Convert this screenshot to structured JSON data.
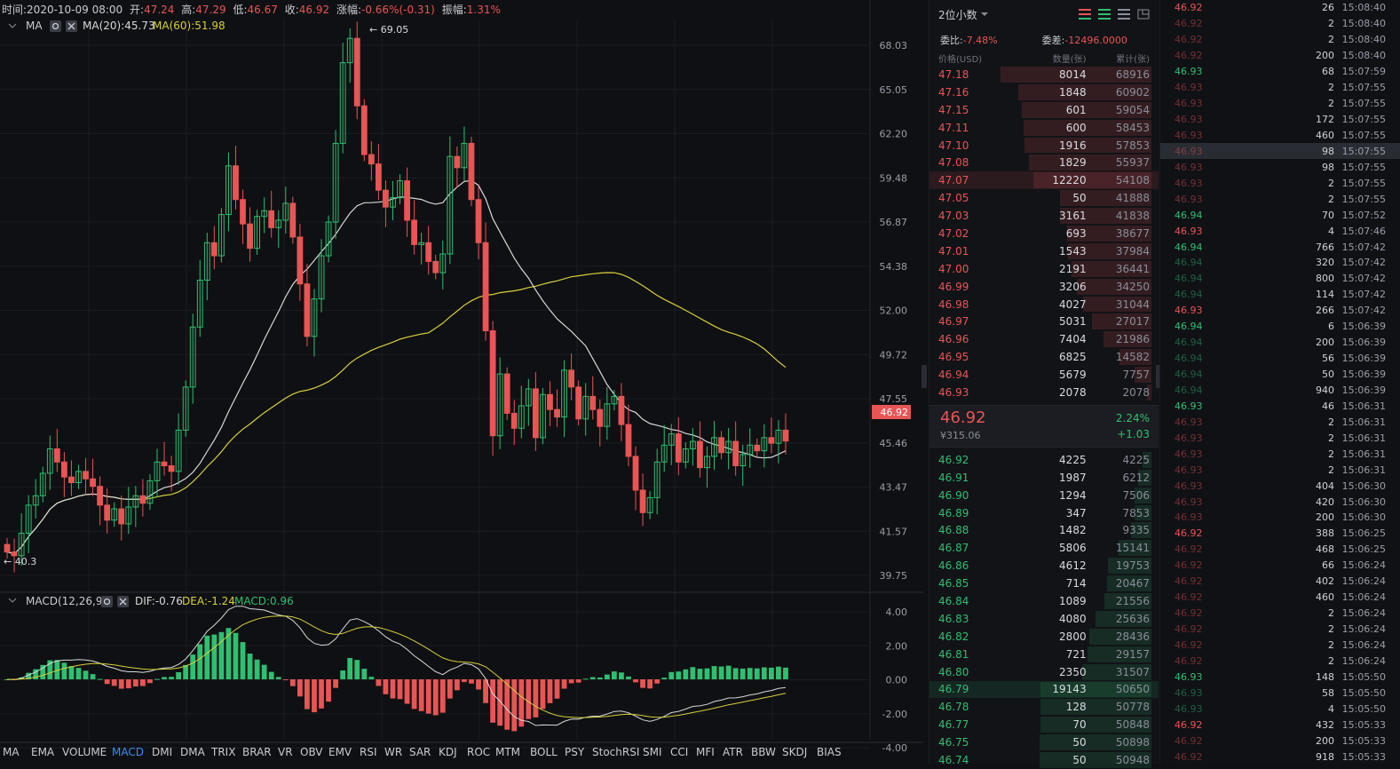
{
  "header": {
    "time_label": "时间:",
    "time": "2020-10-09 08:00",
    "open_label": "开:",
    "open": "47.24",
    "high_label": "高:",
    "high": "47.29",
    "low_label": "低:",
    "low": "46.67",
    "close_label": "收:",
    "close": "46.92",
    "change_label": "涨幅:",
    "change": "-0.66%(-0.31)",
    "amp_label": "振幅:",
    "amp": "1.31%"
  },
  "ma_legend": {
    "name": "MA",
    "ma20": "MA(20):45.73",
    "ma60": "MA(60):51.98"
  },
  "macd_legend": {
    "name": "MACD(12,26,9)",
    "dif": "DIF:-0.76",
    "dea": "DEA:-1.24",
    "macd": "MACD:0.96"
  },
  "price_axis": [
    "68.03",
    "65.05",
    "62.20",
    "59.48",
    "56.87",
    "54.38",
    "52.00",
    "49.72",
    "47.55",
    "45.46",
    "43.47",
    "41.57",
    "39.75"
  ],
  "current_price_tag": "46.92",
  "high_marker": "← 69.05",
  "low_marker": "← 40.3",
  "macd_axis": [
    "4.00",
    "2.00",
    "0.00",
    "-2.00",
    "-4.00"
  ],
  "indicator_tabs": [
    "MA",
    "EMA",
    "VOLUME",
    "MACD",
    "DMI",
    "DMA",
    "TRIX",
    "BRAR",
    "VR",
    "OBV",
    "EMV",
    "RSI",
    "WR",
    "SAR",
    "KDJ",
    "ROC",
    "MTM",
    "BOLL",
    "PSY",
    "StochRSI",
    "SMI",
    "CCI",
    "MFI",
    "ATR",
    "BBW",
    "SKDJ",
    "BIAS"
  ],
  "active_tab": "MACD",
  "colors": {
    "up": "#2fbf71",
    "down": "#e85555",
    "ma20": "#d8d8d8",
    "ma60": "#d6cf3a",
    "accent": "#3d8ef0"
  },
  "chart_data": {
    "type": "candlestick",
    "ma20_last": 45.73,
    "ma60_last": 51.98,
    "visible_high": 69.05,
    "visible_low": 40.3,
    "ylim": [
      39.75,
      68.03
    ],
    "macd_ylim": [
      -4.0,
      4.0
    ]
  },
  "orderbook": {
    "precision": "2位小数",
    "ratio_label": "委比:",
    "ratio": "-7.48%",
    "diff_label": "委差:",
    "diff": "-12496.0000",
    "col_price": "价格(USD)",
    "col_qty": "数量(张)",
    "col_cum": "累计(张)",
    "asks": [
      {
        "price": "47.18",
        "qty": "8014",
        "cum": "68916"
      },
      {
        "price": "47.16",
        "qty": "1848",
        "cum": "60902"
      },
      {
        "price": "47.15",
        "qty": "601",
        "cum": "59054"
      },
      {
        "price": "47.11",
        "qty": "600",
        "cum": "58453"
      },
      {
        "price": "47.10",
        "qty": "1916",
        "cum": "57853"
      },
      {
        "price": "47.08",
        "qty": "1829",
        "cum": "55937"
      },
      {
        "price": "47.07",
        "qty": "12220",
        "cum": "54108"
      },
      {
        "price": "47.05",
        "qty": "50",
        "cum": "41888"
      },
      {
        "price": "47.03",
        "qty": "3161",
        "cum": "41838"
      },
      {
        "price": "47.02",
        "qty": "693",
        "cum": "38677"
      },
      {
        "price": "47.01",
        "qty": "1543",
        "cum": "37984"
      },
      {
        "price": "47.00",
        "qty": "2191",
        "cum": "36441"
      },
      {
        "price": "46.99",
        "qty": "3206",
        "cum": "34250"
      },
      {
        "price": "46.98",
        "qty": "4027",
        "cum": "31044"
      },
      {
        "price": "46.97",
        "qty": "5031",
        "cum": "27017"
      },
      {
        "price": "46.96",
        "qty": "7404",
        "cum": "21986"
      },
      {
        "price": "46.95",
        "qty": "6825",
        "cum": "14582"
      },
      {
        "price": "46.94",
        "qty": "5679",
        "cum": "7757"
      },
      {
        "price": "46.93",
        "qty": "2078",
        "cum": "2078"
      }
    ],
    "last_price": "46.92",
    "last_cny": "¥315.06",
    "last_pct": "2.24%",
    "last_chg": "+1.03",
    "bids": [
      {
        "price": "46.92",
        "qty": "4225",
        "cum": "4225"
      },
      {
        "price": "46.91",
        "qty": "1987",
        "cum": "6212"
      },
      {
        "price": "46.90",
        "qty": "1294",
        "cum": "7506"
      },
      {
        "price": "46.89",
        "qty": "347",
        "cum": "7853"
      },
      {
        "price": "46.88",
        "qty": "1482",
        "cum": "9335"
      },
      {
        "price": "46.87",
        "qty": "5806",
        "cum": "15141"
      },
      {
        "price": "46.86",
        "qty": "4612",
        "cum": "19753"
      },
      {
        "price": "46.85",
        "qty": "714",
        "cum": "20467"
      },
      {
        "price": "46.84",
        "qty": "1089",
        "cum": "21556"
      },
      {
        "price": "46.83",
        "qty": "4080",
        "cum": "25636"
      },
      {
        "price": "46.82",
        "qty": "2800",
        "cum": "28436"
      },
      {
        "price": "46.81",
        "qty": "721",
        "cum": "29157"
      },
      {
        "price": "46.80",
        "qty": "2350",
        "cum": "31507"
      },
      {
        "price": "46.79",
        "qty": "19143",
        "cum": "50650"
      },
      {
        "price": "46.78",
        "qty": "128",
        "cum": "50778"
      },
      {
        "price": "46.77",
        "qty": "70",
        "cum": "50848"
      },
      {
        "price": "46.75",
        "qty": "50",
        "cum": "50898"
      },
      {
        "price": "46.74",
        "qty": "50",
        "cum": "50948"
      }
    ]
  },
  "trades": [
    {
      "price": "46.92",
      "qty": "26",
      "time": "15:08:40",
      "side": "sell",
      "dim": false
    },
    {
      "price": "46.92",
      "qty": "2",
      "time": "15:08:40",
      "side": "sell",
      "dim": true
    },
    {
      "price": "46.92",
      "qty": "2",
      "time": "15:08:40",
      "side": "sell",
      "dim": true
    },
    {
      "price": "46.92",
      "qty": "200",
      "time": "15:08:40",
      "side": "sell",
      "dim": true
    },
    {
      "price": "46.93",
      "qty": "68",
      "time": "15:07:59",
      "side": "buy",
      "dim": false
    },
    {
      "price": "46.93",
      "qty": "2",
      "time": "15:07:55",
      "side": "sell",
      "dim": true
    },
    {
      "price": "46.93",
      "qty": "2",
      "time": "15:07:55",
      "side": "sell",
      "dim": true
    },
    {
      "price": "46.93",
      "qty": "172",
      "time": "15:07:55",
      "side": "sell",
      "dim": true
    },
    {
      "price": "46.93",
      "qty": "460",
      "time": "15:07:55",
      "side": "sell",
      "dim": true
    },
    {
      "price": "46.93",
      "qty": "98",
      "time": "15:07:55",
      "side": "sell",
      "dim": true
    },
    {
      "price": "46.93",
      "qty": "98",
      "time": "15:07:55",
      "side": "sell",
      "dim": true
    },
    {
      "price": "46.93",
      "qty": "2",
      "time": "15:07:55",
      "side": "sell",
      "dim": true
    },
    {
      "price": "46.93",
      "qty": "2",
      "time": "15:07:55",
      "side": "sell",
      "dim": true
    },
    {
      "price": "46.94",
      "qty": "70",
      "time": "15:07:52",
      "side": "buy",
      "dim": false
    },
    {
      "price": "46.93",
      "qty": "4",
      "time": "15:07:46",
      "side": "sell",
      "dim": false
    },
    {
      "price": "46.94",
      "qty": "766",
      "time": "15:07:42",
      "side": "buy",
      "dim": false
    },
    {
      "price": "46.94",
      "qty": "320",
      "time": "15:07:42",
      "side": "buy",
      "dim": true
    },
    {
      "price": "46.94",
      "qty": "800",
      "time": "15:07:42",
      "side": "buy",
      "dim": true
    },
    {
      "price": "46.94",
      "qty": "114",
      "time": "15:07:42",
      "side": "buy",
      "dim": true
    },
    {
      "price": "46.93",
      "qty": "266",
      "time": "15:07:42",
      "side": "sell",
      "dim": false
    },
    {
      "price": "46.94",
      "qty": "6",
      "time": "15:06:39",
      "side": "buy",
      "dim": false
    },
    {
      "price": "46.94",
      "qty": "200",
      "time": "15:06:39",
      "side": "buy",
      "dim": true
    },
    {
      "price": "46.94",
      "qty": "56",
      "time": "15:06:39",
      "side": "buy",
      "dim": true
    },
    {
      "price": "46.94",
      "qty": "50",
      "time": "15:06:39",
      "side": "buy",
      "dim": true
    },
    {
      "price": "46.94",
      "qty": "940",
      "time": "15:06:39",
      "side": "buy",
      "dim": true
    },
    {
      "price": "46.93",
      "qty": "46",
      "time": "15:06:31",
      "side": "buy",
      "dim": false
    },
    {
      "price": "46.93",
      "qty": "2",
      "time": "15:06:31",
      "side": "sell",
      "dim": true
    },
    {
      "price": "46.93",
      "qty": "2",
      "time": "15:06:31",
      "side": "sell",
      "dim": true
    },
    {
      "price": "46.93",
      "qty": "2",
      "time": "15:06:31",
      "side": "sell",
      "dim": true
    },
    {
      "price": "46.93",
      "qty": "2",
      "time": "15:06:31",
      "side": "sell",
      "dim": true
    },
    {
      "price": "46.93",
      "qty": "404",
      "time": "15:06:30",
      "side": "sell",
      "dim": true
    },
    {
      "price": "46.93",
      "qty": "420",
      "time": "15:06:30",
      "side": "sell",
      "dim": true
    },
    {
      "price": "46.93",
      "qty": "200",
      "time": "15:06:30",
      "side": "sell",
      "dim": true
    },
    {
      "price": "46.92",
      "qty": "388",
      "time": "15:06:25",
      "side": "sell",
      "dim": false
    },
    {
      "price": "46.92",
      "qty": "468",
      "time": "15:06:25",
      "side": "sell",
      "dim": true
    },
    {
      "price": "46.92",
      "qty": "66",
      "time": "15:06:24",
      "side": "sell",
      "dim": true
    },
    {
      "price": "46.92",
      "qty": "402",
      "time": "15:06:24",
      "side": "sell",
      "dim": true
    },
    {
      "price": "46.92",
      "qty": "460",
      "time": "15:06:24",
      "side": "sell",
      "dim": true
    },
    {
      "price": "46.92",
      "qty": "2",
      "time": "15:06:24",
      "side": "sell",
      "dim": true
    },
    {
      "price": "46.92",
      "qty": "2",
      "time": "15:06:24",
      "side": "sell",
      "dim": true
    },
    {
      "price": "46.92",
      "qty": "2",
      "time": "15:06:24",
      "side": "sell",
      "dim": true
    },
    {
      "price": "46.92",
      "qty": "2",
      "time": "15:06:24",
      "side": "sell",
      "dim": true
    },
    {
      "price": "46.93",
      "qty": "148",
      "time": "15:05:50",
      "side": "buy",
      "dim": false
    },
    {
      "price": "46.93",
      "qty": "58",
      "time": "15:05:50",
      "side": "buy",
      "dim": true
    },
    {
      "price": "46.93",
      "qty": "4",
      "time": "15:05:50",
      "side": "buy",
      "dim": true
    },
    {
      "price": "46.92",
      "qty": "432",
      "time": "15:05:33",
      "side": "sell",
      "dim": false
    },
    {
      "price": "46.92",
      "qty": "200",
      "time": "15:05:33",
      "side": "sell",
      "dim": true
    },
    {
      "price": "46.92",
      "qty": "918",
      "time": "15:05:33",
      "side": "sell",
      "dim": true
    }
  ]
}
